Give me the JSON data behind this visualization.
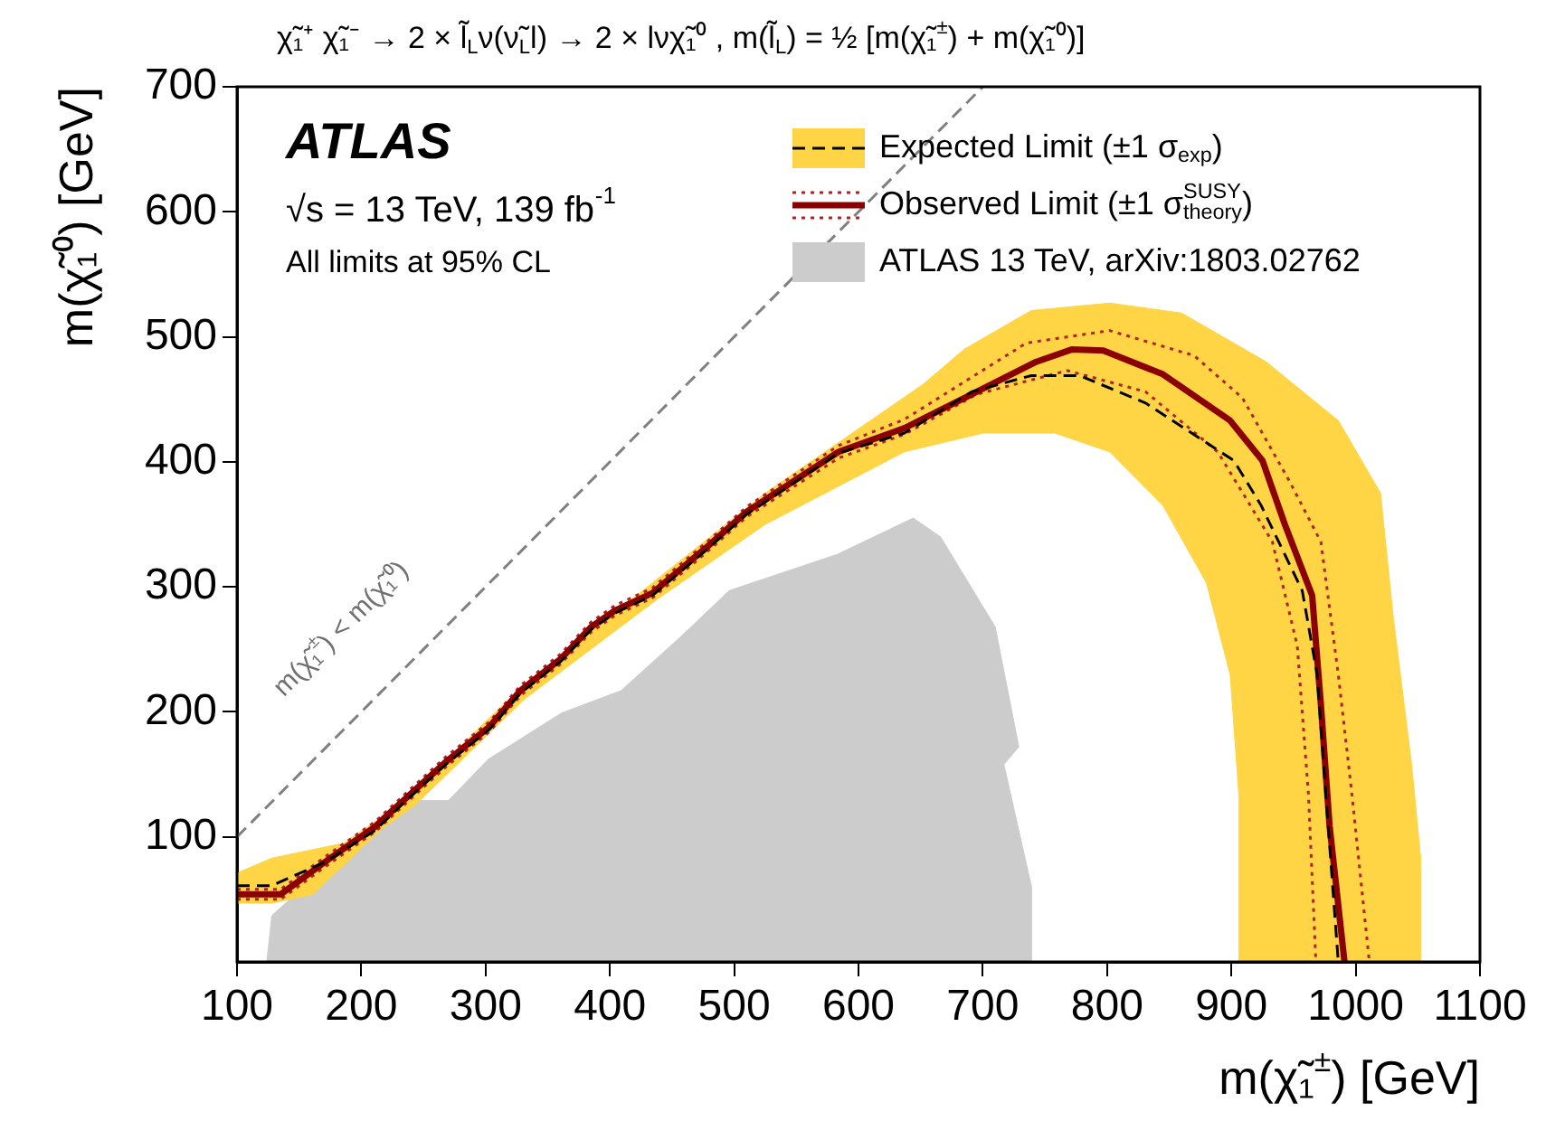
{
  "chart_data": {
    "type": "line",
    "title": "χ̃₁⁺ χ̃₁⁻ → 2 × l̃$_{L}$ν(ν̃$_{L}$l) → 2 × lνχ̃₁⁰ , m(l̃$_{L}$) = ½ [m(χ̃₁$^{±}$) + m(χ̃₁⁰)]",
    "xlabel": "m(χ̃₁$^{±}$) [GeV]",
    "ylabel": "m(χ̃₁⁰) [GeV]",
    "xlim": [
      100,
      1100
    ],
    "xticks": [
      100,
      200,
      300,
      400,
      500,
      600,
      700,
      800,
      900,
      1000,
      1100
    ],
    "ylim": [
      0,
      700
    ],
    "yticks": [
      100,
      200,
      300,
      400,
      500,
      600,
      700
    ],
    "legend": "top right",
    "marker": "none",
    "annotations": [
      "ATLAS",
      "√s = 13 TeV, 139 fb$^{-1}$",
      "All limits at 95% CL",
      "m(χ̃₁$^{±}$) < m(χ̃₁⁰)"
    ],
    "series": [
      {
        "color": "#808080",
        "line_style": "dashed",
        "x": [
          100,
          700
        ],
        "values": [
          100,
          700
        ]
      },
      {
        "type": "area",
        "name": "Expected Limit (±1 σ$_{exp}$)",
        "color": "#ffd445",
        "x": [
          100,
          128,
          186,
          215,
          244,
          331,
          434,
          525,
          652,
          685,
          739,
          802,
          860,
          928,
          986,
          1020,
          1030,
          1045,
          1052,
          1052,
          906,
          906,
          899,
          880,
          845,
          802,
          758,
          700,
          637,
          525,
          438,
          331,
          244,
          215,
          161,
          128,
          100,
          100
        ],
        "values": [
          71,
          83,
          95,
          115,
          138,
          222,
          303,
          375,
          462,
          490,
          521,
          527,
          519,
          480,
          433,
          375,
          278,
          158,
          86,
          0,
          0,
          134,
          230,
          303,
          365,
          408,
          423,
          423,
          408,
          350,
          290,
          210,
          126,
          105,
          54,
          47,
          47,
          71
        ]
      },
      {
        "color": "#000000",
        "line_style": "dashed",
        "x": [
          100,
          128,
          171,
          211,
          236,
          268,
          303,
          328,
          360,
          385,
          404,
          434,
          477,
          510,
          584,
          637,
          691,
          739,
          778,
          831,
          885,
          902,
          924,
          957,
          969,
          976,
          986
        ],
        "values": [
          61,
          61,
          80,
          105,
          129,
          158,
          186,
          215,
          240,
          266,
          279,
          293,
          329,
          358,
          407,
          423,
          456,
          469,
          469,
          447,
          412,
          401,
          365,
          297,
          230,
          134,
          0
        ]
      },
      {
        "name": "Observed Limit (±1 σ$^{SUSY}$$_{theory}$)",
        "color": "#8b0000",
        "line_style": "solid",
        "x": [
          100,
          135,
          175,
          211,
          236,
          268,
          303,
          328,
          360,
          385,
          404,
          434,
          477,
          510,
          584,
          637,
          685,
          743,
          772,
          797,
          845,
          899,
          925,
          943,
          965,
          972,
          979,
          991
        ],
        "values": [
          54,
          54,
          83,
          108,
          131,
          160,
          188,
          217,
          242,
          268,
          281,
          295,
          331,
          360,
          408,
          427,
          451,
          480,
          490,
          489,
          470,
          433,
          401,
          350,
          293,
          206,
          109,
          0
        ]
      },
      {
        "color": "#b22222",
        "line_style": "dotted",
        "x": [
          100,
          135,
          175,
          211,
          236,
          268,
          303,
          328,
          360,
          385,
          404,
          434,
          477,
          510,
          584,
          637,
          735,
          802,
          870,
          909,
          947,
          972,
          986,
          997,
          1011
        ],
        "values": [
          58,
          58,
          87,
          112,
          135,
          164,
          192,
          221,
          246,
          272,
          285,
          299,
          335,
          364,
          413,
          434,
          495,
          505,
          485,
          451,
          384,
          336,
          230,
          134,
          0
        ]
      },
      {
        "color": "#b22222",
        "line_style": "dotted",
        "x": [
          100,
          135,
          175,
          211,
          236,
          268,
          303,
          328,
          360,
          385,
          404,
          434,
          477,
          510,
          584,
          637,
          695,
          768,
          831,
          889,
          933,
          953,
          962,
          968
        ],
        "values": [
          50,
          50,
          79,
          104,
          127,
          156,
          184,
          213,
          238,
          264,
          277,
          291,
          327,
          356,
          403,
          422,
          454,
          473,
          456,
          408,
          336,
          253,
          134,
          0
        ]
      },
      {
        "type": "area",
        "name": "ATLAS 13 TeV, arXiv:1803.02762",
        "color": "#cccccc",
        "x": [
          124,
          128,
          147,
          196,
          215,
          230,
          270,
          302,
          361,
          409,
          458,
          496,
          583,
          644,
          666,
          710,
          729,
          717,
          739,
          739,
          124
        ],
        "values": [
          0,
          37,
          54,
          95,
          116,
          129,
          129,
          162,
          199,
          217,
          261,
          297,
          326,
          355,
          340,
          268,
          172,
          158,
          61,
          0,
          0
        ]
      }
    ]
  }
}
